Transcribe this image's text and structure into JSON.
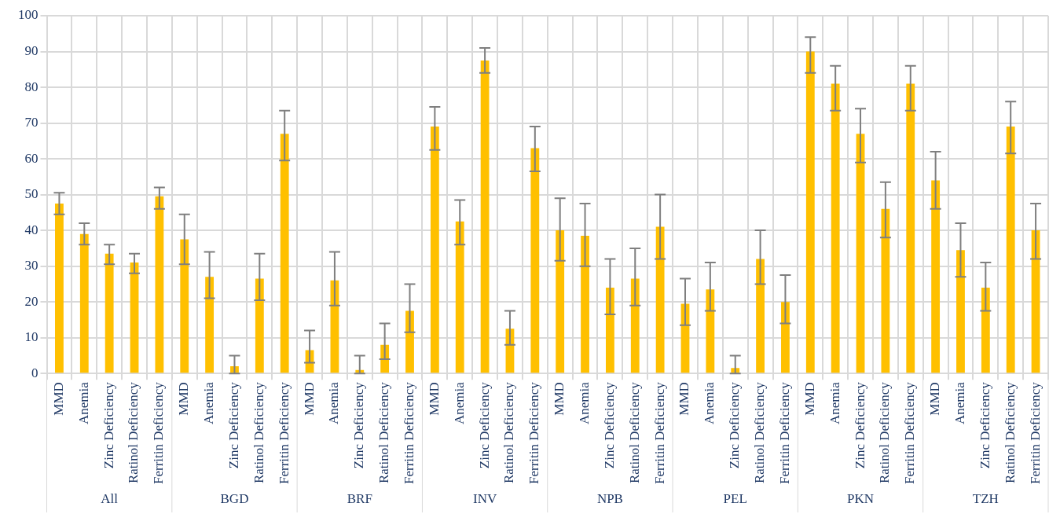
{
  "chart_data": {
    "type": "bar",
    "categories": [
      "MMD",
      "Anemia",
      "Zinc Deficiency",
      "Ratinol Deficiency",
      "Ferritin Deficiency",
      "MMD",
      "Anemia",
      "Zinc Deficiency",
      "Ratinol Deficiency",
      "Ferritin Deficiency",
      "MMD",
      "Anemia",
      "Zinc Deficiency",
      "Ratinol Deficiency",
      "Ferritin Deficiency",
      "MMD",
      "Anemia",
      "Zinc Deficiency",
      "Ratinol Deficiency",
      "Ferritin Deficiency",
      "MMD",
      "Anemia",
      "Zinc Deficiency",
      "Ratinol Deficiency",
      "Ferritin Deficiency",
      "MMD",
      "Anemia",
      "Zinc Deficiency",
      "Ratinol Deficiency",
      "Ferritin Deficiency",
      "MMD",
      "Anemia",
      "Zinc Deficiency",
      "Ratinol Deficiency",
      "Ferritin Deficiency",
      "MMD",
      "Anemia",
      "Zinc Deficiency",
      "Ratinol Deficiency",
      "Ferritin Deficiency"
    ],
    "values": [
      47.5,
      39,
      33.5,
      31,
      49.5,
      37.5,
      27,
      2,
      26.5,
      67,
      6.5,
      26,
      1,
      8,
      17.5,
      69,
      42.5,
      87.5,
      12.5,
      63,
      40,
      38.5,
      24,
      26.5,
      41,
      19.5,
      23.5,
      1.5,
      32,
      20,
      90,
      81,
      67,
      46,
      81,
      54,
      34.5,
      24,
      69,
      40
    ],
    "errors": [
      [
        44.5,
        50.5
      ],
      [
        36,
        42
      ],
      [
        30.5,
        36
      ],
      [
        28,
        33.5
      ],
      [
        46,
        52
      ],
      [
        30.5,
        44.5
      ],
      [
        21,
        34
      ],
      [
        0,
        5
      ],
      [
        20.5,
        33.5
      ],
      [
        59.5,
        73.5
      ],
      [
        3,
        12
      ],
      [
        19,
        34
      ],
      [
        0,
        5
      ],
      [
        4,
        14
      ],
      [
        11.5,
        25
      ],
      [
        62.5,
        74.5
      ],
      [
        36,
        48.5
      ],
      [
        84,
        91
      ],
      [
        8,
        17.5
      ],
      [
        56.5,
        69
      ],
      [
        31.5,
        49
      ],
      [
        30,
        47.5
      ],
      [
        16.5,
        32
      ],
      [
        19,
        35
      ],
      [
        32,
        50
      ],
      [
        13.5,
        26.5
      ],
      [
        17.5,
        31
      ],
      [
        0,
        5
      ],
      [
        25,
        40
      ],
      [
        14,
        27.5
      ],
      [
        84,
        94
      ],
      [
        73.5,
        86
      ],
      [
        59,
        74
      ],
      [
        38,
        53.5
      ],
      [
        73.5,
        86
      ],
      [
        46,
        62
      ],
      [
        27,
        42
      ],
      [
        17.5,
        31
      ],
      [
        61.5,
        76
      ],
      [
        32,
        47.5
      ]
    ],
    "color": "#ffc000",
    "ylim": [
      0,
      100
    ],
    "yticks": [
      0,
      10,
      20,
      30,
      40,
      50,
      60,
      70,
      80,
      90,
      100
    ],
    "grid": true,
    "annotations": [
      "All",
      "BGD",
      "BRF",
      "INV",
      "NPB",
      "PEL",
      "PKN",
      "TZH"
    ]
  }
}
